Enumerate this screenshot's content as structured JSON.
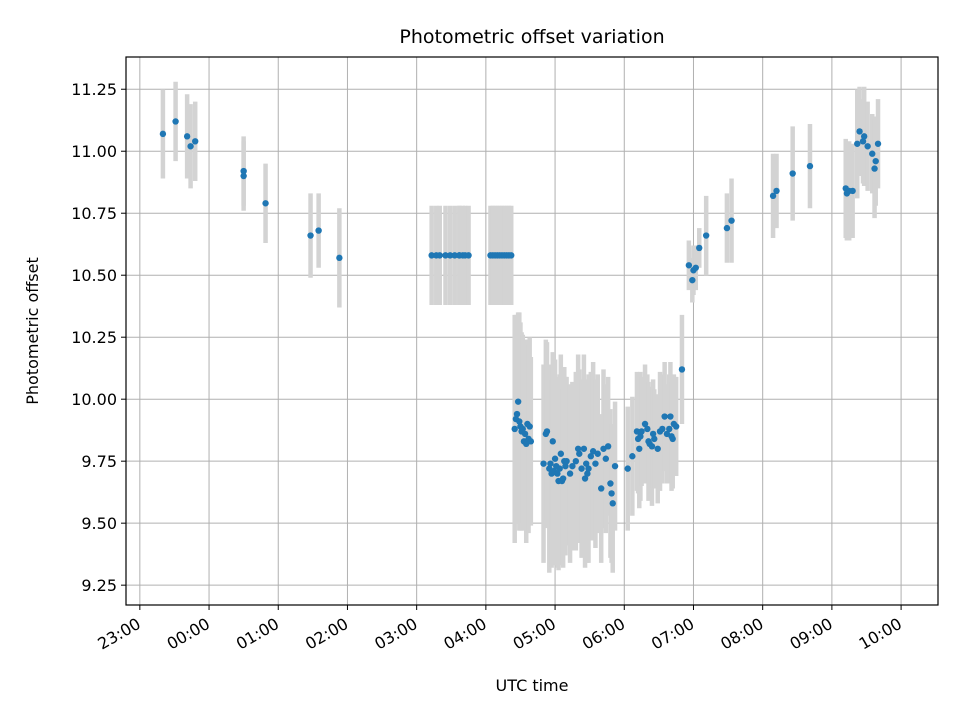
{
  "chart_data": {
    "type": "scatter",
    "title": "Photometric offset variation",
    "xlabel": "UTC time",
    "ylabel": "Photometric offset",
    "xlim": [
      "22:48",
      "10:32"
    ],
    "ylim": [
      9.17,
      11.38
    ],
    "x_ticks": [
      "23:00",
      "00:00",
      "01:00",
      "02:00",
      "03:00",
      "04:00",
      "05:00",
      "06:00",
      "07:00",
      "08:00",
      "09:00",
      "10:00"
    ],
    "y_ticks": [
      "9.25",
      "9.50",
      "9.75",
      "10.00",
      "10.25",
      "10.50",
      "10.75",
      "11.00",
      "11.25"
    ],
    "grid": true,
    "colors": {
      "marker": "#1f77b4",
      "errorbar": "#d3d3d3",
      "grid": "#b0b0b0"
    },
    "series": [
      {
        "points": [
          {
            "x": "23:20",
            "y": 11.07,
            "err": 0.18
          },
          {
            "x": "23:31",
            "y": 11.12,
            "err": 0.16
          },
          {
            "x": "23:41",
            "y": 11.06,
            "err": 0.17
          },
          {
            "x": "23:44",
            "y": 11.02,
            "err": 0.17
          },
          {
            "x": "23:48",
            "y": 11.04,
            "err": 0.16
          },
          {
            "x": "00:30",
            "y": 10.92,
            "err": 0.14
          },
          {
            "x": "00:30",
            "y": 10.9,
            "err": 0.14
          },
          {
            "x": "00:49",
            "y": 10.79,
            "err": 0.16
          },
          {
            "x": "01:28",
            "y": 10.66,
            "err": 0.17
          },
          {
            "x": "01:35",
            "y": 10.68,
            "err": 0.15
          },
          {
            "x": "01:53",
            "y": 10.57,
            "err": 0.2
          },
          {
            "x": "03:13",
            "y": 10.58,
            "err": 0.2
          },
          {
            "x": "03:17",
            "y": 10.58,
            "err": 0.2
          },
          {
            "x": "03:20",
            "y": 10.58,
            "err": 0.2
          },
          {
            "x": "03:25",
            "y": 10.58,
            "err": 0.2
          },
          {
            "x": "03:29",
            "y": 10.58,
            "err": 0.2
          },
          {
            "x": "03:33",
            "y": 10.58,
            "err": 0.2
          },
          {
            "x": "03:37",
            "y": 10.58,
            "err": 0.2
          },
          {
            "x": "03:37",
            "y": 10.58,
            "err": 0.2
          },
          {
            "x": "03:40",
            "y": 10.58,
            "err": 0.2
          },
          {
            "x": "03:42",
            "y": 10.58,
            "err": 0.2
          },
          {
            "x": "03:45",
            "y": 10.58,
            "err": 0.2
          },
          {
            "x": "04:04",
            "y": 10.58,
            "err": 0.2
          },
          {
            "x": "04:06",
            "y": 10.58,
            "err": 0.2
          },
          {
            "x": "04:08",
            "y": 10.58,
            "err": 0.2
          },
          {
            "x": "04:10",
            "y": 10.58,
            "err": 0.2
          },
          {
            "x": "04:12",
            "y": 10.58,
            "err": 0.2
          },
          {
            "x": "04:14",
            "y": 10.58,
            "err": 0.2
          },
          {
            "x": "04:16",
            "y": 10.58,
            "err": 0.2
          },
          {
            "x": "04:18",
            "y": 10.58,
            "err": 0.2
          },
          {
            "x": "04:20",
            "y": 10.58,
            "err": 0.2
          },
          {
            "x": "04:22",
            "y": 10.58,
            "err": 0.2
          },
          {
            "x": "04:25",
            "y": 9.88,
            "err": 0.46
          },
          {
            "x": "04:26",
            "y": 9.92,
            "err": 0.42
          },
          {
            "x": "04:27",
            "y": 9.94,
            "err": 0.4
          },
          {
            "x": "04:28",
            "y": 9.99,
            "err": 0.36
          },
          {
            "x": "04:29",
            "y": 9.91,
            "err": 0.44
          },
          {
            "x": "04:30",
            "y": 9.89,
            "err": 0.42
          },
          {
            "x": "04:31",
            "y": 9.87,
            "err": 0.4
          },
          {
            "x": "04:32",
            "y": 9.88,
            "err": 0.38
          },
          {
            "x": "04:33",
            "y": 9.83,
            "err": 0.36
          },
          {
            "x": "04:34",
            "y": 9.86,
            "err": 0.38
          },
          {
            "x": "04:35",
            "y": 9.82,
            "err": 0.4
          },
          {
            "x": "04:36",
            "y": 9.9,
            "err": 0.34
          },
          {
            "x": "04:37",
            "y": 9.84,
            "err": 0.38
          },
          {
            "x": "04:38",
            "y": 9.89,
            "err": 0.36
          },
          {
            "x": "04:39",
            "y": 9.83,
            "err": 0.34
          },
          {
            "x": "04:50",
            "y": 9.74,
            "err": 0.4
          },
          {
            "x": "04:52",
            "y": 9.86,
            "err": 0.38
          },
          {
            "x": "04:53",
            "y": 9.87,
            "err": 0.36
          },
          {
            "x": "04:55",
            "y": 9.72,
            "err": 0.42
          },
          {
            "x": "04:56",
            "y": 9.74,
            "err": 0.4
          },
          {
            "x": "04:57",
            "y": 9.7,
            "err": 0.38
          },
          {
            "x": "04:58",
            "y": 9.83,
            "err": 0.36
          },
          {
            "x": "04:59",
            "y": 9.71,
            "err": 0.38
          },
          {
            "x": "05:00",
            "y": 9.76,
            "err": 0.4
          },
          {
            "x": "05:01",
            "y": 9.73,
            "err": 0.36
          },
          {
            "x": "05:02",
            "y": 9.7,
            "err": 0.38
          },
          {
            "x": "05:03",
            "y": 9.67,
            "err": 0.36
          },
          {
            "x": "05:04",
            "y": 9.72,
            "err": 0.38
          },
          {
            "x": "05:05",
            "y": 9.78,
            "err": 0.4
          },
          {
            "x": "05:06",
            "y": 9.67,
            "err": 0.34
          },
          {
            "x": "05:07",
            "y": 9.68,
            "err": 0.36
          },
          {
            "x": "05:08",
            "y": 9.75,
            "err": 0.38
          },
          {
            "x": "05:09",
            "y": 9.73,
            "err": 0.36
          },
          {
            "x": "05:10",
            "y": 9.75,
            "err": 0.34
          },
          {
            "x": "05:13",
            "y": 9.7,
            "err": 0.36
          },
          {
            "x": "05:15",
            "y": 9.73,
            "err": 0.34
          },
          {
            "x": "05:18",
            "y": 9.75,
            "err": 0.36
          },
          {
            "x": "05:20",
            "y": 9.8,
            "err": 0.38
          },
          {
            "x": "05:21",
            "y": 9.78,
            "err": 0.34
          },
          {
            "x": "05:23",
            "y": 9.72,
            "err": 0.36
          },
          {
            "x": "05:25",
            "y": 9.8,
            "err": 0.38
          },
          {
            "x": "05:26",
            "y": 9.68,
            "err": 0.36
          },
          {
            "x": "05:27",
            "y": 9.74,
            "err": 0.34
          },
          {
            "x": "05:28",
            "y": 9.7,
            "err": 0.36
          },
          {
            "x": "05:29",
            "y": 9.72,
            "err": 0.38
          },
          {
            "x": "05:31",
            "y": 9.77,
            "err": 0.34
          },
          {
            "x": "05:33",
            "y": 9.79,
            "err": 0.36
          },
          {
            "x": "05:35",
            "y": 9.74,
            "err": 0.34
          },
          {
            "x": "05:37",
            "y": 9.78,
            "err": 0.32
          },
          {
            "x": "05:40",
            "y": 9.64,
            "err": 0.3
          },
          {
            "x": "05:42",
            "y": 9.8,
            "err": 0.32
          },
          {
            "x": "05:44",
            "y": 9.76,
            "err": 0.3
          },
          {
            "x": "05:46",
            "y": 9.81,
            "err": 0.28
          },
          {
            "x": "05:48",
            "y": 9.66,
            "err": 0.3
          },
          {
            "x": "05:49",
            "y": 9.62,
            "err": 0.28
          },
          {
            "x": "05:50",
            "y": 9.58,
            "err": 0.28
          },
          {
            "x": "05:52",
            "y": 9.73,
            "err": 0.26
          },
          {
            "x": "06:03",
            "y": 9.72,
            "err": 0.25
          },
          {
            "x": "06:07",
            "y": 9.77,
            "err": 0.24
          },
          {
            "x": "06:11",
            "y": 9.87,
            "err": 0.24
          },
          {
            "x": "06:12",
            "y": 9.84,
            "err": 0.22
          },
          {
            "x": "06:13",
            "y": 9.8,
            "err": 0.24
          },
          {
            "x": "06:14",
            "y": 9.85,
            "err": 0.26
          },
          {
            "x": "06:15",
            "y": 9.87,
            "err": 0.22
          },
          {
            "x": "06:18",
            "y": 9.9,
            "err": 0.24
          },
          {
            "x": "06:20",
            "y": 9.88,
            "err": 0.22
          },
          {
            "x": "06:21",
            "y": 9.83,
            "err": 0.24
          },
          {
            "x": "06:22",
            "y": 9.82,
            "err": 0.22
          },
          {
            "x": "06:24",
            "y": 9.81,
            "err": 0.24
          },
          {
            "x": "06:25",
            "y": 9.86,
            "err": 0.22
          },
          {
            "x": "06:26",
            "y": 9.84,
            "err": 0.2
          },
          {
            "x": "06:29",
            "y": 9.8,
            "err": 0.22
          },
          {
            "x": "06:31",
            "y": 9.87,
            "err": 0.24
          },
          {
            "x": "06:33",
            "y": 9.88,
            "err": 0.22
          },
          {
            "x": "06:35",
            "y": 9.93,
            "err": 0.22
          },
          {
            "x": "06:37",
            "y": 9.86,
            "err": 0.2
          },
          {
            "x": "06:39",
            "y": 9.88,
            "err": 0.22
          },
          {
            "x": "06:40",
            "y": 9.93,
            "err": 0.22
          },
          {
            "x": "06:41",
            "y": 9.85,
            "err": 0.22
          },
          {
            "x": "06:42",
            "y": 9.84,
            "err": 0.2
          },
          {
            "x": "06:43",
            "y": 9.9,
            "err": 0.2
          },
          {
            "x": "06:45",
            "y": 9.89,
            "err": 0.2
          },
          {
            "x": "06:50",
            "y": 10.12,
            "err": 0.22
          },
          {
            "x": "06:56",
            "y": 10.54,
            "err": 0.1
          },
          {
            "x": "06:59",
            "y": 10.48,
            "err": 0.09
          },
          {
            "x": "07:00",
            "y": 10.52,
            "err": 0.1
          },
          {
            "x": "07:02",
            "y": 10.53,
            "err": 0.09
          },
          {
            "x": "07:05",
            "y": 10.61,
            "err": 0.08
          },
          {
            "x": "07:11",
            "y": 10.66,
            "err": 0.16
          },
          {
            "x": "07:29",
            "y": 10.69,
            "err": 0.14
          },
          {
            "x": "07:33",
            "y": 10.72,
            "err": 0.17
          },
          {
            "x": "08:09",
            "y": 10.82,
            "err": 0.17
          },
          {
            "x": "08:12",
            "y": 10.84,
            "err": 0.15
          },
          {
            "x": "08:26",
            "y": 10.91,
            "err": 0.19
          },
          {
            "x": "08:41",
            "y": 10.94,
            "err": 0.17
          },
          {
            "x": "09:12",
            "y": 10.85,
            "err": 0.2
          },
          {
            "x": "09:13",
            "y": 10.83,
            "err": 0.19
          },
          {
            "x": "09:15",
            "y": 10.84,
            "err": 0.2
          },
          {
            "x": "09:18",
            "y": 10.84,
            "err": 0.19
          },
          {
            "x": "09:22",
            "y": 11.03,
            "err": 0.22
          },
          {
            "x": "09:24",
            "y": 11.08,
            "err": 0.18
          },
          {
            "x": "09:27",
            "y": 11.04,
            "err": 0.17
          },
          {
            "x": "09:28",
            "y": 11.06,
            "err": 0.2
          },
          {
            "x": "09:31",
            "y": 11.02,
            "err": 0.18
          },
          {
            "x": "09:35",
            "y": 10.99,
            "err": 0.16
          },
          {
            "x": "09:37",
            "y": 10.93,
            "err": 0.2
          },
          {
            "x": "09:38",
            "y": 10.96,
            "err": 0.18
          },
          {
            "x": "09:40",
            "y": 11.03,
            "err": 0.18
          }
        ]
      }
    ]
  }
}
